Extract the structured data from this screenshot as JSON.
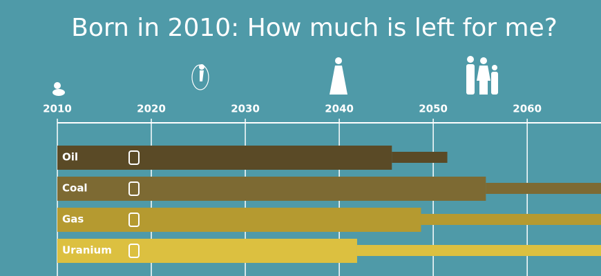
{
  "chart_data": {
    "type": "bar",
    "title": "Born in 2010: How much is left for me?",
    "categories": [
      "Oil",
      "Coal",
      "Gas",
      "Uranium"
    ],
    "colors": [
      "#5a4a26",
      "#7d6a33",
      "#b59a30",
      "#dcc040"
    ],
    "series": [
      {
        "values": [
          2045.6,
          2055.6,
          2048.7,
          2041.9
        ]
      },
      {
        "values": [
          2051.5,
          2068,
          2068,
          2068
        ]
      }
    ],
    "xlim": [
      2010,
      2068
    ],
    "xticks": [
      2010,
      2020,
      2030,
      2040,
      2050,
      2060
    ],
    "grid": true
  }
}
